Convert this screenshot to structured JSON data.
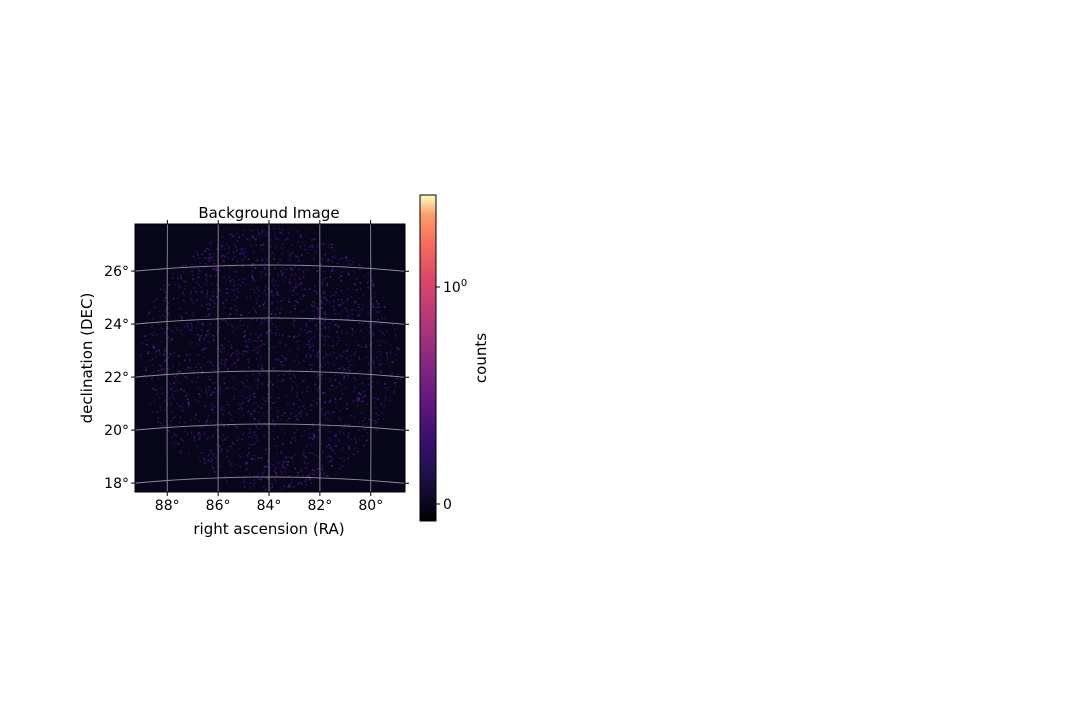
{
  "chart_data": {
    "type": "heatmap",
    "title": "Background Image",
    "xlabel": "right ascension (RA)",
    "ylabel": "declination (DEC)",
    "projection": "sky map with curved RA/DEC grid",
    "ra_range_deg": [
      89,
      78.5
    ],
    "dec_range_deg": [
      17.5,
      27.3
    ],
    "ra_ticks": [
      "88°",
      "86°",
      "84°",
      "82°",
      "80°"
    ],
    "ra_tick_values": [
      88,
      86,
      84,
      82,
      80
    ],
    "dec_ticks": [
      "26°",
      "24°",
      "22°",
      "20°",
      "18°"
    ],
    "dec_tick_values": [
      26,
      24,
      22,
      20,
      18
    ],
    "grid": true,
    "colormap": "magma",
    "colorbar": {
      "label": "counts",
      "scale": "symlog",
      "ticks": [
        {
          "text": "0",
          "value": 0
        },
        {
          "text": "10",
          "exp": "0",
          "value": 1
        }
      ]
    },
    "data_description_values": {
      "background_level": 0,
      "sparse_pixel_values": [
        0.1,
        0.3
      ]
    }
  }
}
